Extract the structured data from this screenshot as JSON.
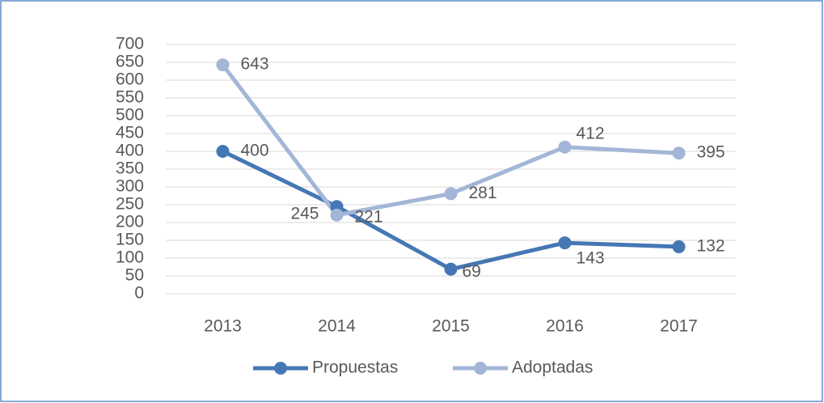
{
  "chart_data": {
    "type": "line",
    "categories": [
      "2013",
      "2014",
      "2015",
      "2016",
      "2017"
    ],
    "series": [
      {
        "name": "Propuestas",
        "color": "#4677b5",
        "values": [
          400,
          245,
          69,
          143,
          132
        ]
      },
      {
        "name": "Adoptadas",
        "color": "#a3b6d7",
        "values": [
          643,
          221,
          281,
          412,
          395
        ]
      }
    ],
    "ylim": [
      0,
      700
    ],
    "yticks": [
      0,
      50,
      100,
      150,
      200,
      250,
      300,
      350,
      400,
      450,
      500,
      550,
      600,
      650,
      700
    ],
    "grid": true,
    "legend": "bottom"
  }
}
